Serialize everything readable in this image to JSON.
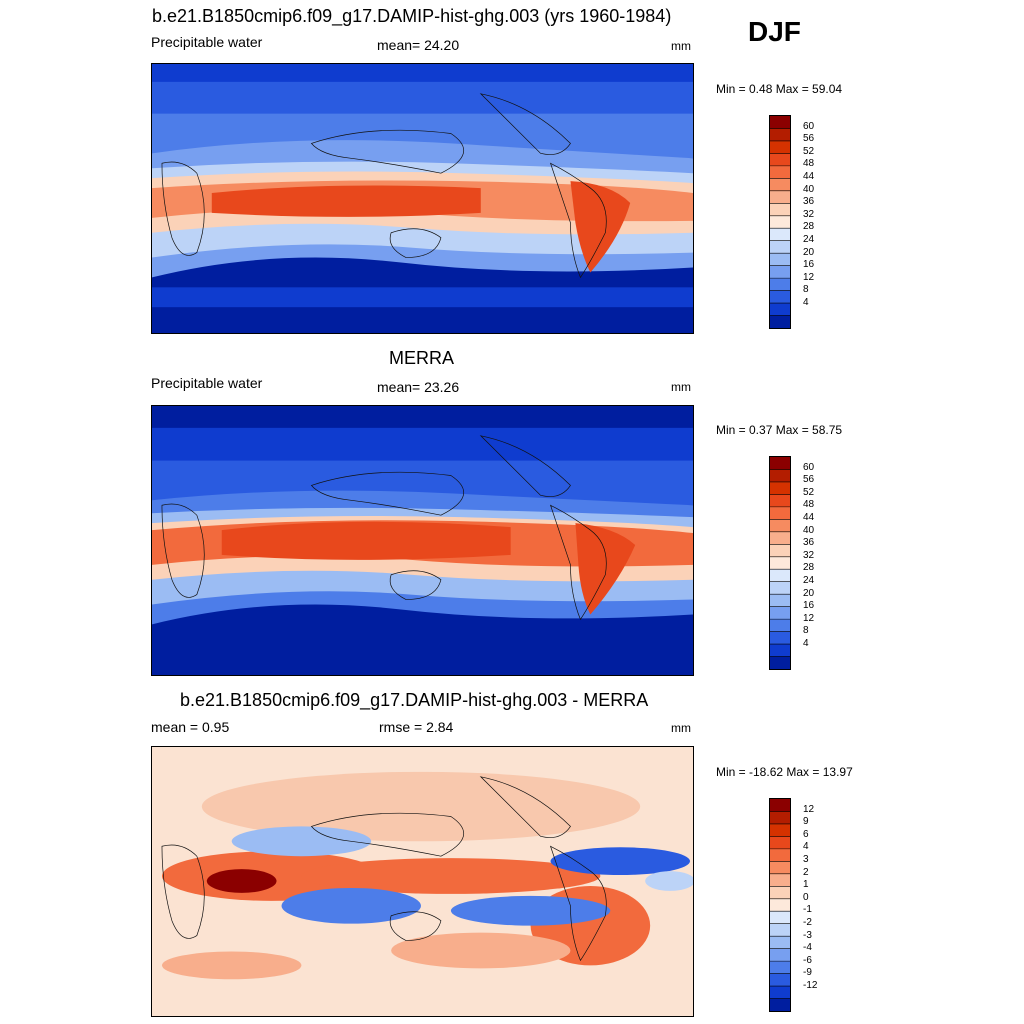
{
  "season": "DJF",
  "chart_data": [
    {
      "type": "heatmap",
      "title": "b.e21.B1850cmip6.f09_g17.DAMIP-hist-ghg.003 (yrs 1960-1984)",
      "left_label": "Precipitable water",
      "center_label": "mean=  24.20",
      "units": "mm",
      "minmax": "Min =   0.48 Max =  59.04",
      "colorbar_levels": [
        "60",
        "56",
        "52",
        "48",
        "44",
        "40",
        "36",
        "32",
        "28",
        "24",
        "20",
        "16",
        "12",
        "8",
        "4"
      ],
      "colorbar_colors": [
        "#8b0000",
        "#b31d00",
        "#d53200",
        "#e8481c",
        "#f26a3d",
        "#f68b60",
        "#f8ae8c",
        "#fbd2b8",
        "#fde9db",
        "#dbe8fb",
        "#bcd3f7",
        "#9bbcf3",
        "#779ff0",
        "#4d7de9",
        "#2a5be0",
        "#0f3ccf",
        "#001e9f"
      ],
      "range": [
        0,
        60
      ]
    },
    {
      "type": "heatmap",
      "title": "MERRA",
      "left_label": "Precipitable water",
      "center_label": "mean=  23.26",
      "units": "mm",
      "minmax": "Min =   0.37 Max =  58.75",
      "colorbar_levels": [
        "60",
        "56",
        "52",
        "48",
        "44",
        "40",
        "36",
        "32",
        "28",
        "24",
        "20",
        "16",
        "12",
        "8",
        "4"
      ],
      "colorbar_colors": [
        "#8b0000",
        "#b31d00",
        "#d53200",
        "#e8481c",
        "#f26a3d",
        "#f68b60",
        "#f8ae8c",
        "#fbd2b8",
        "#fde9db",
        "#dbe8fb",
        "#bcd3f7",
        "#9bbcf3",
        "#779ff0",
        "#4d7de9",
        "#2a5be0",
        "#0f3ccf",
        "#001e9f"
      ],
      "range": [
        0,
        60
      ]
    },
    {
      "type": "heatmap",
      "title": "b.e21.B1850cmip6.f09_g17.DAMIP-hist-ghg.003 - MERRA",
      "left_label": "mean =   0.95",
      "center_label": "rmse =   2.84",
      "units": "mm",
      "minmax": "Min = -18.62 Max =  13.97",
      "colorbar_levels": [
        "12",
        "9",
        "6",
        "4",
        "3",
        "2",
        "1",
        "0",
        "-1",
        "-2",
        "-3",
        "-4",
        "-6",
        "-9",
        "-12"
      ],
      "colorbar_colors": [
        "#8b0000",
        "#b31d00",
        "#d53200",
        "#e8481c",
        "#f26a3d",
        "#f68b60",
        "#f8ae8c",
        "#fbd2b8",
        "#fde9db",
        "#dbe8fb",
        "#bcd3f7",
        "#9bbcf3",
        "#779ff0",
        "#4d7de9",
        "#2a5be0",
        "#0f3ccf",
        "#001e9f"
      ],
      "range": [
        -18.62,
        13.97
      ]
    }
  ]
}
